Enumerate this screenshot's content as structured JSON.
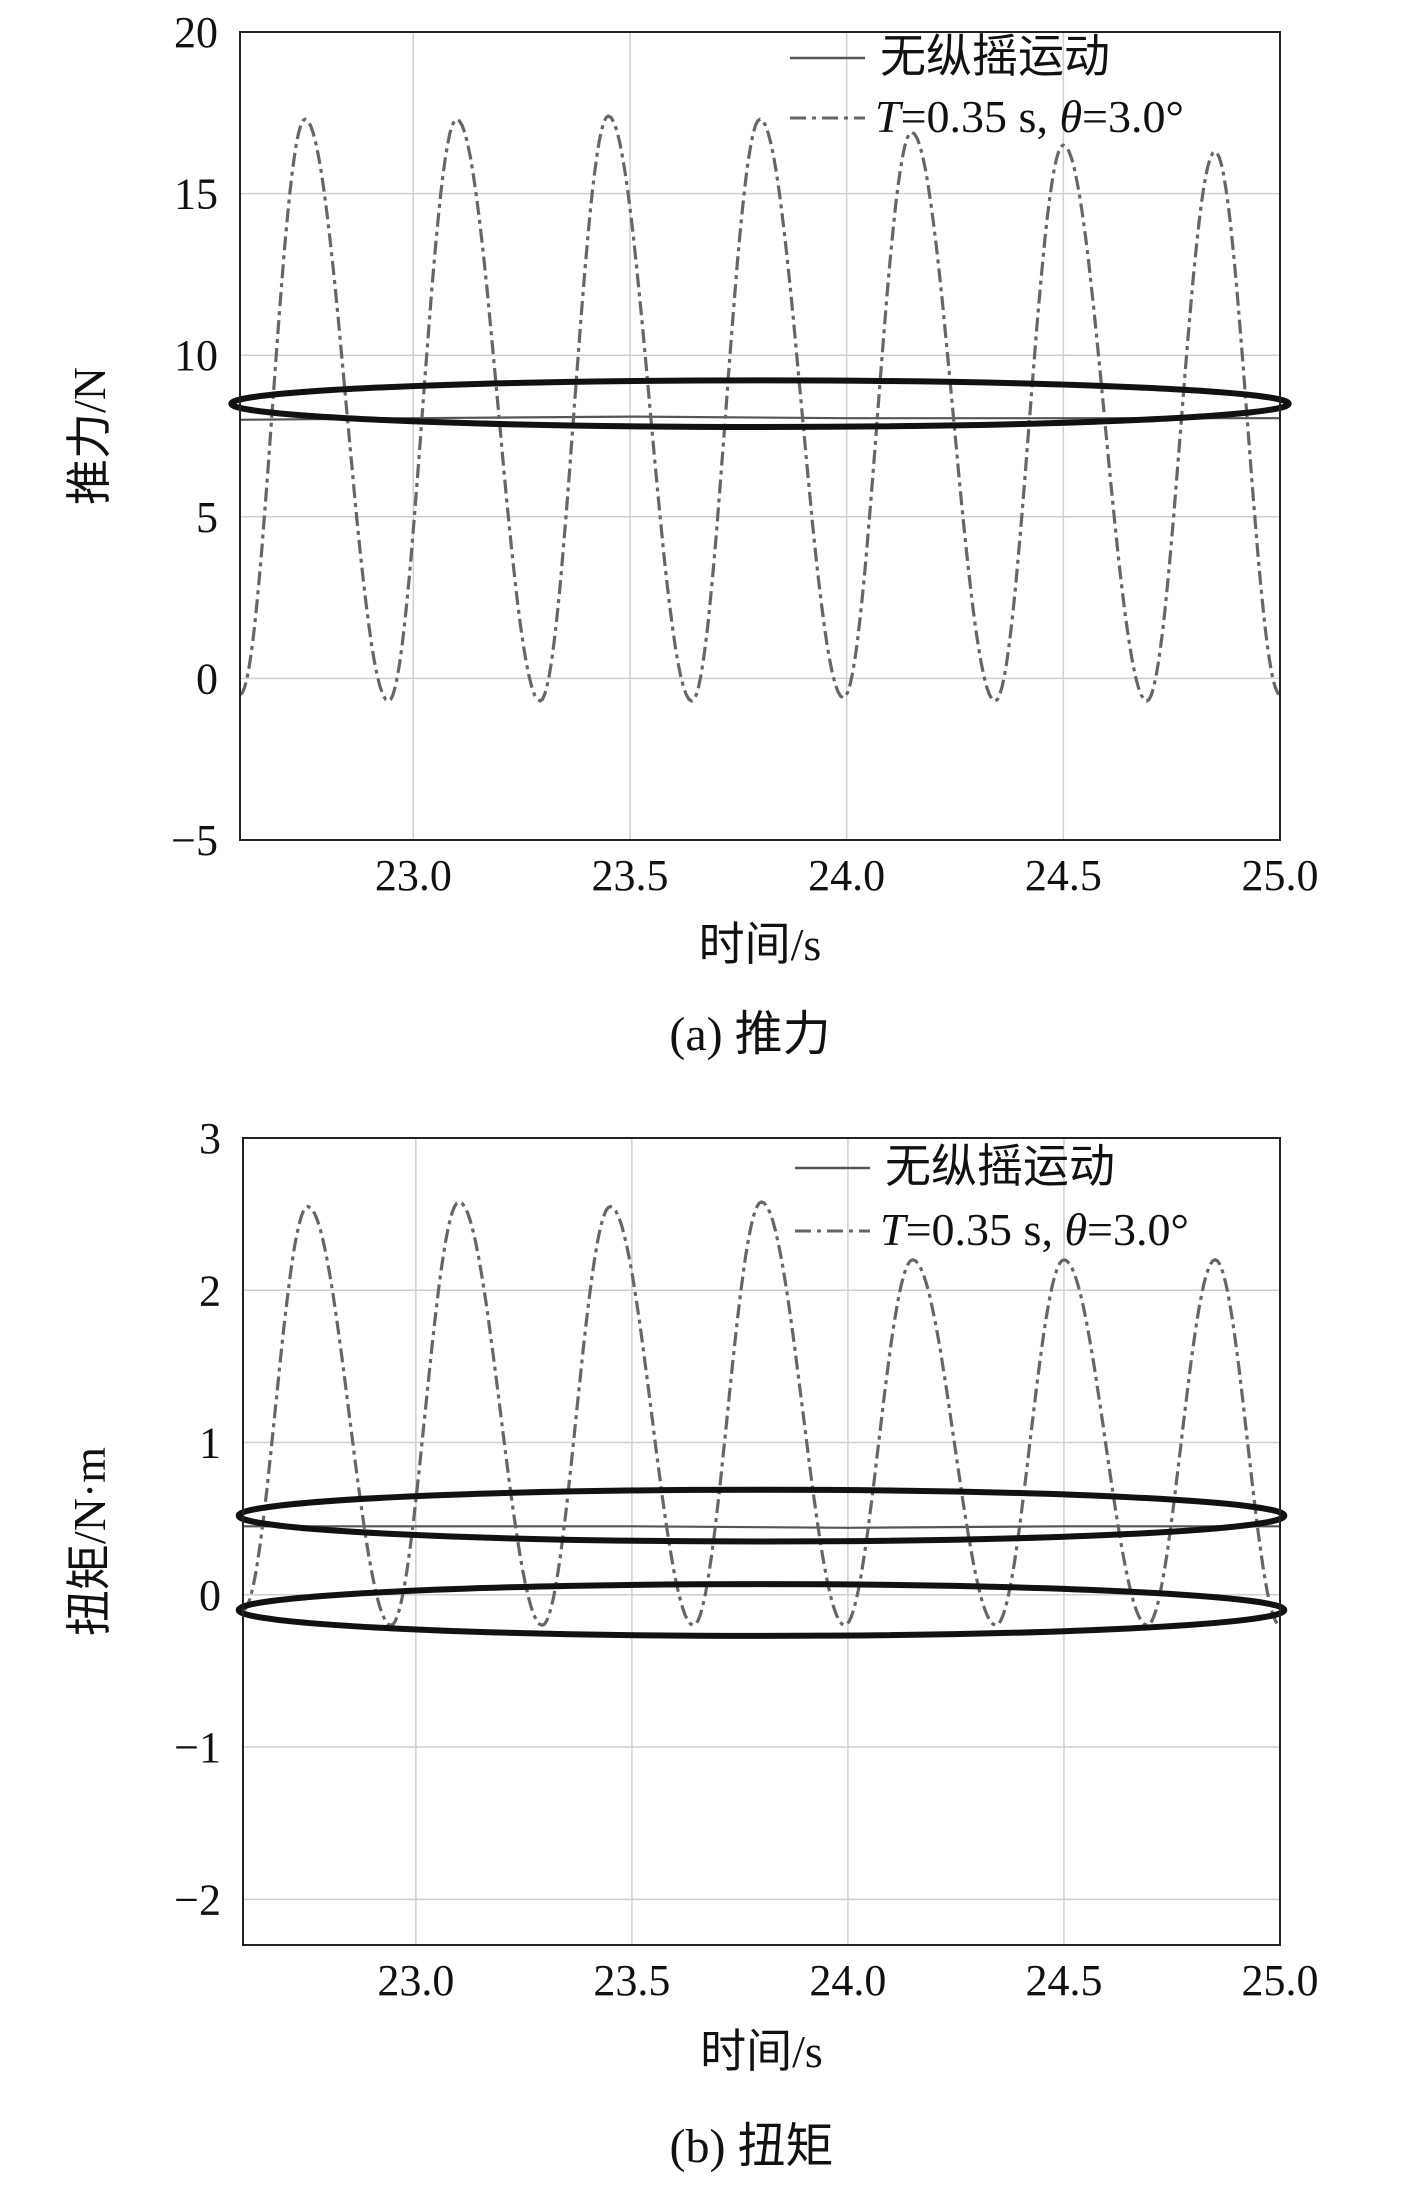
{
  "chart_data": [
    {
      "type": "line",
      "title": "",
      "caption": "(a) 推力",
      "xlabel": "时间/s",
      "ylabel": "推力/N",
      "xlim": [
        22.6,
        25.0
      ],
      "ylim": [
        -5,
        20
      ],
      "xticks": [
        "23.0",
        "23.5",
        "24.0",
        "24.5",
        "25.0"
      ],
      "yticks": [
        "20",
        "15",
        "10",
        "5",
        "0",
        "−5"
      ],
      "grid": true,
      "legend_position": "top-right",
      "series": [
        {
          "name": "无纵摇运动",
          "style": "solid",
          "color": "#555555",
          "x": [
            22.6,
            23.0,
            23.5,
            24.0,
            24.5,
            25.0
          ],
          "y": [
            8.0,
            8.05,
            8.1,
            8.05,
            8.05,
            8.05
          ]
        },
        {
          "name_prefix": "T",
          "name_suffix": "=0.35 s, ",
          "name_theta": "θ",
          "name_value": "=3.0°",
          "style": "dashdot",
          "color": "#666666",
          "period": 0.35,
          "first_peak": 22.75,
          "peaks": [
            17.3,
            17.3,
            17.4,
            17.3,
            16.9,
            16.5,
            16.3
          ],
          "troughs": [
            -0.7,
            -0.7,
            -0.7,
            -0.6,
            -0.7,
            -0.7,
            -0.6
          ],
          "start_value": -0.5,
          "end_value": -0.5
        }
      ],
      "annotations": [
        {
          "type": "ellipse",
          "cx": 23.8,
          "cy": 8.5,
          "rx": 1.22,
          "ry": 0.72
        }
      ]
    },
    {
      "type": "line",
      "title": "",
      "caption": "(b) 扭矩",
      "xlabel": "时间/s",
      "ylabel": "扭矩/N·m",
      "xlim": [
        22.6,
        25.0
      ],
      "ylim": [
        -2.3,
        3
      ],
      "xticks": [
        "23.0",
        "23.5",
        "24.0",
        "24.5",
        "25.0"
      ],
      "yticks": [
        "3",
        "2",
        "1",
        "0",
        "−1",
        "−2"
      ],
      "grid": true,
      "legend_position": "top-right",
      "series": [
        {
          "name": "无纵摇运动",
          "style": "solid",
          "color": "#555555",
          "x": [
            22.6,
            23.0,
            23.5,
            24.0,
            24.5,
            25.0
          ],
          "y": [
            0.45,
            0.45,
            0.45,
            0.44,
            0.45,
            0.45
          ]
        },
        {
          "name_prefix": "T",
          "name_suffix": "=0.35 s, ",
          "name_theta": "θ",
          "name_value": "=3.0°",
          "style": "dashdot",
          "color": "#666666",
          "period": 0.35,
          "first_peak": 22.75,
          "peaks": [
            2.55,
            2.58,
            2.55,
            2.58,
            2.2,
            2.2,
            2.2
          ],
          "troughs": [
            -0.2,
            -0.2,
            -0.2,
            -0.2,
            -0.2,
            -0.2,
            -0.2
          ],
          "start_value": -0.1,
          "end_value": -0.2
        }
      ],
      "annotations": [
        {
          "type": "ellipse",
          "cx": 23.8,
          "cy": 0.52,
          "rx": 1.21,
          "ry": 0.17
        },
        {
          "type": "ellipse",
          "cx": 23.8,
          "cy": -0.1,
          "rx": 1.21,
          "ry": 0.17
        }
      ]
    }
  ]
}
